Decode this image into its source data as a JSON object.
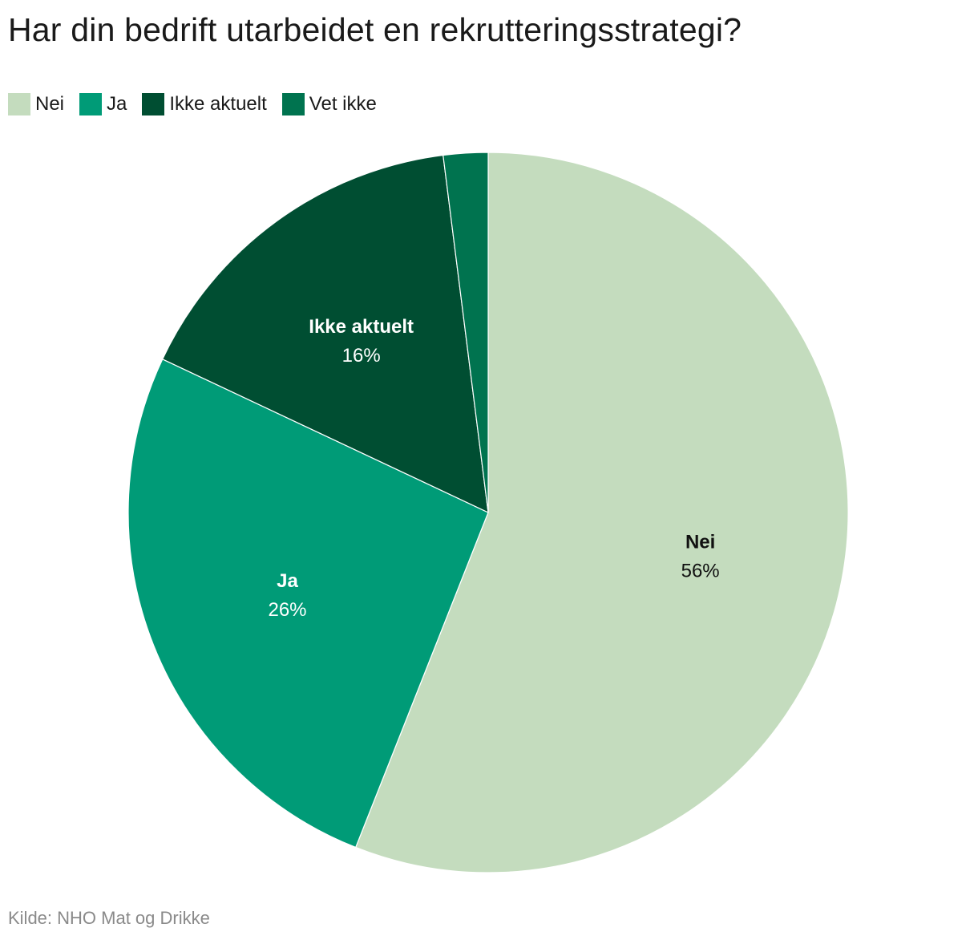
{
  "chart_data": {
    "type": "pie",
    "title": "Har din bedrift utarbeidet en rekrutteringsstrategi?",
    "legend_position": "top-left",
    "slices": [
      {
        "name": "Nei",
        "value": 56,
        "label": "56%",
        "color": "#c4dcbe",
        "label_color": "#111111",
        "show_label": true
      },
      {
        "name": "Ja",
        "value": 26,
        "label": "26%",
        "color": "#009b77",
        "label_color": "#ffffff",
        "show_label": true
      },
      {
        "name": "Ikke aktuelt",
        "value": 16,
        "label": "16%",
        "color": "#004e32",
        "label_color": "#ffffff",
        "show_label": true
      },
      {
        "name": "Vet ikke",
        "value": 2,
        "label": "",
        "color": "#00734f",
        "label_color": "#ffffff",
        "show_label": false
      }
    ],
    "source": "Kilde: NHO Mat og Drikke"
  }
}
